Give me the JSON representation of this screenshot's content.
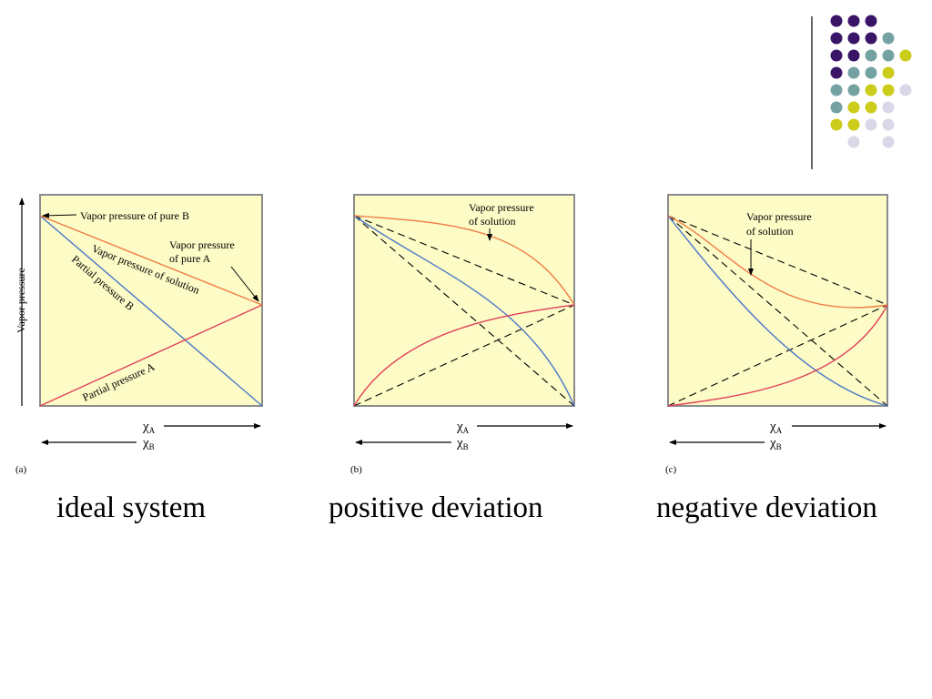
{
  "colors": {
    "plot_bg": "#fdfbc6",
    "frame": "#8c8c8c",
    "solution_curve": "#f07c45",
    "partial_b_curve": "#4a78c9",
    "partial_a_curve": "#e0405a",
    "dashed": "#000000",
    "dot_purple": "#3a1466",
    "dot_teal": "#74a2a2",
    "dot_yellow": "#cccc1a",
    "dot_lavender": "#d8d8e8"
  },
  "decoration": {
    "dot_grid": [
      [
        "purple",
        "purple",
        "purple",
        null,
        null
      ],
      [
        "purple",
        "purple",
        "purple",
        "teal",
        null
      ],
      [
        "purple",
        "purple",
        "teal",
        "teal",
        "yellow"
      ],
      [
        "purple",
        "teal",
        "teal",
        "yellow",
        null
      ],
      [
        "teal",
        "teal",
        "yellow",
        "yellow",
        "lavender"
      ],
      [
        "teal",
        "yellow",
        "yellow",
        "lavender",
        null
      ],
      [
        "yellow",
        "yellow",
        "lavender",
        "lavender",
        null
      ],
      [
        null,
        "lavender",
        null,
        "lavender",
        null
      ]
    ]
  },
  "axis_labels": {
    "y": "Vapor pressure",
    "chi_sym": "χ",
    "sub_a": "A",
    "sub_b": "B"
  },
  "panels": [
    {
      "letter": "(a)",
      "caption": "ideal system",
      "annotations": {
        "pure_b": "Vapor pressure of pure B",
        "pure_a_1": "Vapor pressure",
        "pure_a_2": "of pure A",
        "solution": "Vapor pressure of solution",
        "partial_b": "Partial pressure B",
        "partial_a": "Partial pressure A"
      }
    },
    {
      "letter": "(b)",
      "caption": "positive deviation",
      "annotations": {
        "solution_1": "Vapor pressure",
        "solution_2": "of solution"
      }
    },
    {
      "letter": "(c)",
      "caption": "negative deviation",
      "annotations": {
        "solution_1": "Vapor pressure",
        "solution_2": "of solution"
      }
    }
  ]
}
